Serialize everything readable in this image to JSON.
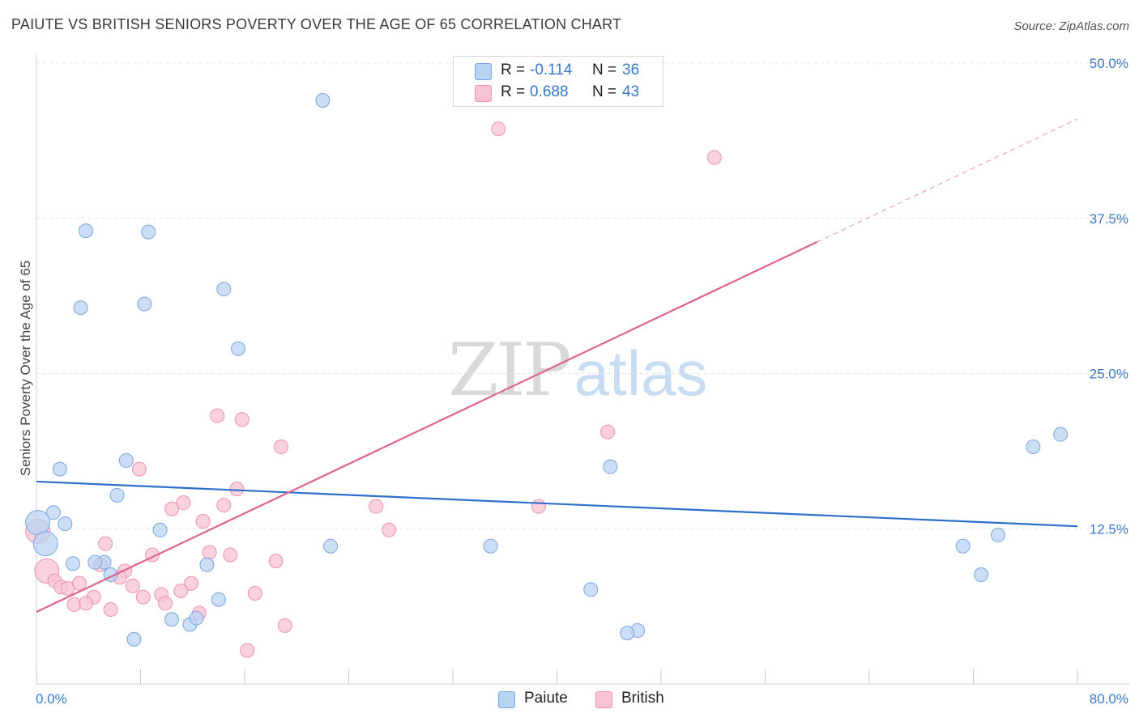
{
  "title": "PAIUTE VS BRITISH SENIORS POVERTY OVER THE AGE OF 65 CORRELATION CHART",
  "source": "Source: ZipAtlas.com",
  "watermark": {
    "part1": "ZIP",
    "part2": "atlas"
  },
  "legend": {
    "paiute": {
      "r_label": "R =",
      "r_value": "-0.114",
      "n_label": "N =",
      "n_value": "36"
    },
    "british": {
      "r_label": "R =",
      "r_value": "0.688",
      "n_label": "N =",
      "n_value": "43"
    }
  },
  "colors": {
    "paiute_fill": "#b9d3f3",
    "paiute_stroke": "#7aa6de",
    "paiute_line": "#2e6fcc",
    "british_fill": "#f8c3d3",
    "british_stroke": "#eb93b0",
    "british_line": "#e0628f",
    "axis_label": "#3a78c9",
    "grid": "#e3e3e3"
  },
  "chart_data": {
    "type": "scatter",
    "title": "PAIUTE VS BRITISH SENIORS POVERTY OVER THE AGE OF 65 CORRELATION CHART",
    "xlabel": "",
    "ylabel": "Seniors Poverty Over the Age of 65",
    "xlim": [
      0,
      80
    ],
    "ylim": [
      0,
      52
    ],
    "x_tick_labels": [
      "0.0%",
      "80.0%"
    ],
    "y_ticks": [
      12.5,
      25.0,
      37.5,
      50.0
    ],
    "y_tick_labels": [
      "12.5%",
      "25.0%",
      "37.5%",
      "50.0%"
    ],
    "grid": true,
    "legend_position": "top-center",
    "series": [
      {
        "name": "Paiute",
        "points": [
          [
            22.0,
            47.0
          ],
          [
            3.8,
            36.5
          ],
          [
            8.6,
            36.4
          ],
          [
            14.4,
            31.8
          ],
          [
            3.4,
            30.3
          ],
          [
            8.3,
            30.6
          ],
          [
            15.5,
            27.0
          ],
          [
            1.8,
            17.3
          ],
          [
            6.9,
            18.0
          ],
          [
            6.2,
            15.2
          ],
          [
            1.3,
            13.8
          ],
          [
            2.2,
            12.9
          ],
          [
            0.1,
            13.0
          ],
          [
            0.7,
            11.3
          ],
          [
            9.5,
            12.4
          ],
          [
            2.8,
            9.7
          ],
          [
            5.2,
            9.8
          ],
          [
            4.5,
            9.8
          ],
          [
            5.7,
            8.8
          ],
          [
            13.1,
            9.6
          ],
          [
            22.6,
            11.1
          ],
          [
            34.9,
            11.1
          ],
          [
            44.1,
            17.5
          ],
          [
            42.6,
            7.6
          ],
          [
            46.2,
            4.3
          ],
          [
            45.4,
            4.1
          ],
          [
            10.4,
            5.2
          ],
          [
            11.8,
            4.8
          ],
          [
            12.3,
            5.3
          ],
          [
            14.0,
            6.8
          ],
          [
            7.5,
            3.6
          ],
          [
            71.2,
            11.1
          ],
          [
            72.6,
            8.8
          ],
          [
            73.9,
            12.0
          ],
          [
            76.6,
            19.1
          ],
          [
            78.7,
            20.1
          ]
        ]
      },
      {
        "name": "British",
        "points": [
          [
            35.5,
            44.7
          ],
          [
            52.1,
            42.4
          ],
          [
            13.9,
            21.6
          ],
          [
            15.8,
            21.3
          ],
          [
            18.8,
            19.1
          ],
          [
            43.9,
            20.3
          ],
          [
            7.9,
            17.3
          ],
          [
            15.4,
            15.7
          ],
          [
            11.3,
            14.6
          ],
          [
            10.4,
            14.1
          ],
          [
            14.4,
            14.4
          ],
          [
            12.8,
            13.1
          ],
          [
            26.1,
            14.3
          ],
          [
            38.6,
            14.3
          ],
          [
            27.1,
            12.4
          ],
          [
            5.3,
            11.3
          ],
          [
            8.9,
            10.4
          ],
          [
            13.3,
            10.6
          ],
          [
            14.9,
            10.4
          ],
          [
            18.4,
            9.9
          ],
          [
            4.9,
            9.6
          ],
          [
            6.8,
            9.1
          ],
          [
            0.1,
            12.3
          ],
          [
            0.8,
            9.1
          ],
          [
            1.4,
            8.3
          ],
          [
            1.9,
            7.8
          ],
          [
            2.4,
            7.7
          ],
          [
            3.3,
            8.1
          ],
          [
            6.4,
            8.6
          ],
          [
            7.4,
            7.9
          ],
          [
            11.9,
            8.1
          ],
          [
            9.6,
            7.2
          ],
          [
            11.1,
            7.5
          ],
          [
            8.2,
            7.0
          ],
          [
            4.4,
            7.0
          ],
          [
            16.8,
            7.3
          ],
          [
            2.9,
            6.4
          ],
          [
            3.8,
            6.5
          ],
          [
            5.7,
            6.0
          ],
          [
            9.9,
            6.5
          ],
          [
            12.5,
            5.7
          ],
          [
            19.1,
            4.7
          ],
          [
            16.2,
            2.7
          ]
        ]
      }
    ],
    "trend_lines": [
      {
        "series": "Paiute",
        "x": [
          0,
          80
        ],
        "y": [
          16.3,
          12.7
        ]
      },
      {
        "series": "British",
        "x": [
          0,
          60
        ],
        "y": [
          5.8,
          35.6
        ],
        "dashed_extension_to": [
          80,
          45.5
        ]
      }
    ]
  }
}
